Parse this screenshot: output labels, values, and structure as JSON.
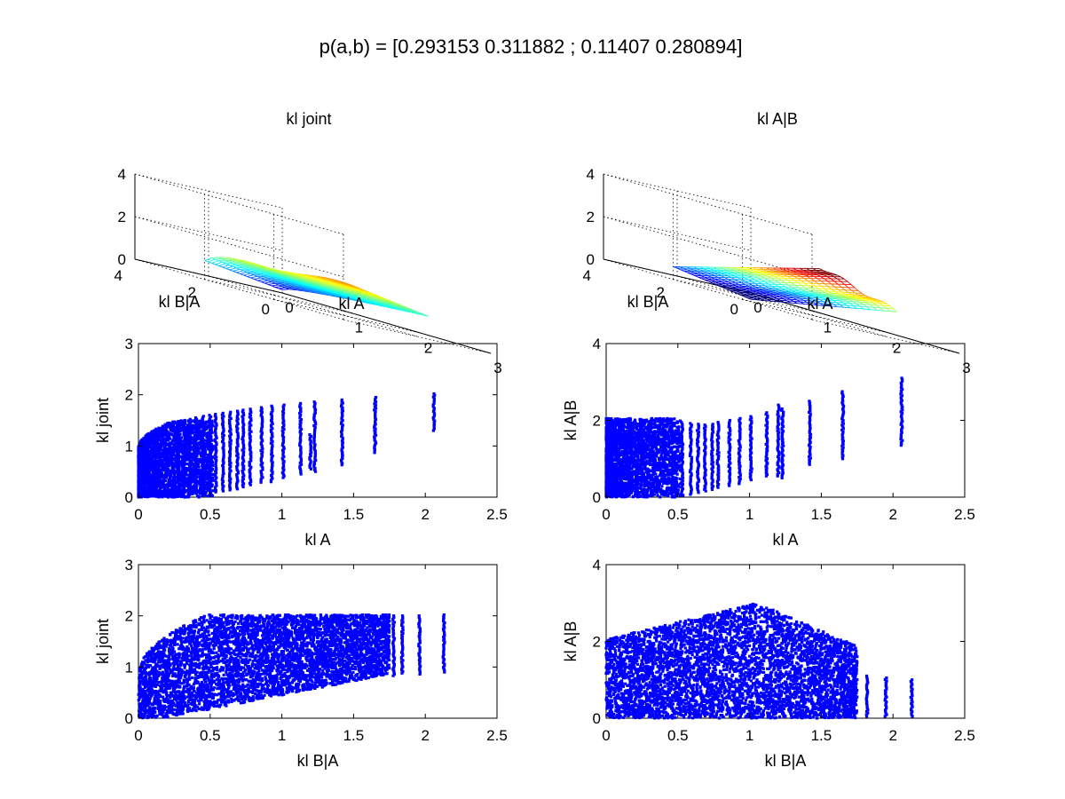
{
  "figure": {
    "suptitle": "p(a,b) = [0.293153 0.311882 ; 0.11407 0.280894]"
  },
  "chart_data": [
    {
      "type": "surface",
      "title": "kl joint",
      "xlabel": "kl A",
      "ylabel": "kl B|A",
      "xticks": [
        "0",
        "1",
        "2",
        "3"
      ],
      "yticks": [
        "0",
        "2",
        "4"
      ],
      "zticks": [
        "0",
        "2",
        "4"
      ],
      "xlim": [
        0,
        3
      ],
      "ylim": [
        0,
        4
      ],
      "zlim": [
        0,
        4
      ],
      "colormap": "jet",
      "grid": true
    },
    {
      "type": "surface",
      "title": "kl A|B",
      "xlabel": "kl A",
      "ylabel": "kl B|A",
      "xticks": [
        "0",
        "1",
        "2",
        "3"
      ],
      "yticks": [
        "0",
        "2",
        "4"
      ],
      "zticks": [
        "0",
        "2",
        "4"
      ],
      "xlim": [
        0,
        3
      ],
      "ylim": [
        0,
        4
      ],
      "zlim": [
        0,
        4
      ],
      "colormap": "jet",
      "grid": true
    },
    {
      "type": "scatter",
      "xlabel": "kl A",
      "ylabel": "kl joint",
      "xlim": [
        0,
        2.5
      ],
      "ylim": [
        0,
        3
      ],
      "xticks": [
        "0",
        "0.5",
        "1",
        "1.5",
        "2",
        "2.5"
      ],
      "yticks": [
        "0",
        "1",
        "2",
        "3"
      ],
      "color": "#0000ff",
      "columns": [
        [
          0.28,
          0.03,
          1.48
        ],
        [
          0.32,
          0.04,
          1.5
        ],
        [
          0.36,
          0.06,
          1.52
        ],
        [
          0.4,
          0.07,
          1.55
        ],
        [
          0.45,
          0.05,
          1.58
        ],
        [
          0.5,
          0.09,
          1.6
        ],
        [
          0.54,
          0.1,
          1.62
        ],
        [
          0.59,
          0.12,
          1.64
        ],
        [
          0.64,
          0.14,
          1.66
        ],
        [
          0.69,
          0.16,
          1.68
        ],
        [
          0.73,
          0.2,
          1.7
        ],
        [
          0.78,
          0.24,
          1.72
        ],
        [
          0.86,
          0.29,
          1.75
        ],
        [
          0.93,
          0.3,
          1.78
        ],
        [
          1.01,
          0.38,
          1.8
        ],
        [
          1.13,
          0.45,
          1.83
        ],
        [
          1.2,
          0.55,
          1.22
        ],
        [
          1.23,
          0.5,
          1.86
        ],
        [
          1.42,
          0.63,
          1.9
        ],
        [
          1.65,
          0.87,
          1.95
        ],
        [
          2.06,
          1.3,
          2.02
        ]
      ]
    },
    {
      "type": "scatter",
      "xlabel": "kl A",
      "ylabel": "kl A|B",
      "xlim": [
        0,
        2.5
      ],
      "ylim": [
        0,
        4
      ],
      "xticks": [
        "0",
        "0.5",
        "1",
        "1.5",
        "2",
        "2.5"
      ],
      "yticks": [
        "0",
        "2",
        "4"
      ],
      "color": "#0000ff",
      "columns": [
        [
          0.53,
          0.05,
          1.95
        ],
        [
          0.59,
          0.07,
          1.92
        ],
        [
          0.64,
          0.12,
          1.9
        ],
        [
          0.69,
          0.16,
          1.88
        ],
        [
          0.74,
          0.2,
          1.9
        ],
        [
          0.78,
          0.25,
          1.95
        ],
        [
          0.86,
          0.3,
          2.0
        ],
        [
          0.93,
          0.35,
          2.05
        ],
        [
          1.01,
          0.45,
          2.1
        ],
        [
          1.12,
          0.55,
          2.2
        ],
        [
          1.2,
          0.55,
          2.4
        ],
        [
          1.23,
          0.5,
          2.3
        ],
        [
          1.42,
          0.85,
          2.5
        ],
        [
          1.65,
          1.0,
          2.75
        ],
        [
          2.06,
          1.35,
          3.1
        ]
      ]
    },
    {
      "type": "scatter",
      "xlabel": "kl B|A",
      "ylabel": "kl joint",
      "xlim": [
        0,
        2.5
      ],
      "ylim": [
        0,
        3
      ],
      "xticks": [
        "0",
        "0.5",
        "1",
        "1.5",
        "2",
        "2.5"
      ],
      "yticks": [
        "0",
        "1",
        "2",
        "3"
      ],
      "color": "#0000ff",
      "columns": [
        [
          1.78,
          0.83,
          2.0
        ],
        [
          1.84,
          0.88,
          2.0
        ],
        [
          1.96,
          0.86,
          2.0
        ],
        [
          2.13,
          0.9,
          2.02
        ]
      ]
    },
    {
      "type": "scatter",
      "xlabel": "kl B|A",
      "ylabel": "kl A|B",
      "xlim": [
        0,
        2.5
      ],
      "ylim": [
        0,
        4
      ],
      "xticks": [
        "0",
        "0.5",
        "1",
        "1.5",
        "2",
        "2.5"
      ],
      "yticks": [
        "0",
        "2",
        "4"
      ],
      "color": "#0000ff",
      "columns": [
        [
          1.66,
          0.05,
          1.4
        ],
        [
          1.73,
          0.05,
          1.25
        ],
        [
          1.82,
          0.05,
          1.1
        ],
        [
          1.95,
          0.05,
          1.05
        ],
        [
          2.13,
          0.05,
          1.0
        ]
      ]
    }
  ]
}
